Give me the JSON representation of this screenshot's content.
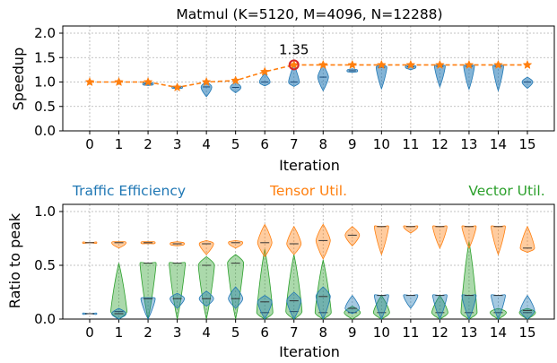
{
  "colors": {
    "blue": "#1f77b4",
    "orange": "#ff7f0e",
    "green": "#2ca02c",
    "marker": "#ff7f0e",
    "highlight": "#d62728"
  },
  "chart_data": [
    {
      "type": "line",
      "title": "Matmul (K=5120, M=4096, N=12288)",
      "xlabel": "Iteration",
      "ylabel": "Speedup",
      "x": [
        0,
        1,
        2,
        3,
        4,
        5,
        6,
        7,
        8,
        9,
        10,
        11,
        12,
        13,
        14,
        15
      ],
      "xticks": [
        "0",
        "1",
        "2",
        "3",
        "4",
        "5",
        "6",
        "7",
        "8",
        "9",
        "10",
        "11",
        "12",
        "13",
        "14",
        "15"
      ],
      "ylim": [
        0.0,
        2.0
      ],
      "yticks": [
        "0.0",
        "0.5",
        "1.0",
        "1.5",
        "2.0"
      ],
      "grid": true,
      "series": [
        {
          "values": [
            1.0,
            1.0,
            1.0,
            0.89,
            1.0,
            1.03,
            1.21,
            1.35,
            1.35,
            1.35,
            1.35,
            1.35,
            1.35,
            1.35,
            1.35,
            1.35
          ]
        }
      ],
      "violins": [
        {
          "x": 2,
          "min": 0.93,
          "max": 0.99,
          "median": 0.96
        },
        {
          "x": 3,
          "min": 0.87,
          "max": 0.91,
          "median": 0.89
        },
        {
          "x": 4,
          "min": 0.7,
          "max": 1.0,
          "median": 0.9
        },
        {
          "x": 5,
          "min": 0.78,
          "max": 1.0,
          "median": 0.89
        },
        {
          "x": 6,
          "min": 0.92,
          "max": 1.17,
          "median": 1.0
        },
        {
          "x": 7,
          "min": 0.91,
          "max": 1.35,
          "median": 1.0
        },
        {
          "x": 8,
          "min": 0.82,
          "max": 1.35,
          "median": 1.1
        },
        {
          "x": 9,
          "min": 1.2,
          "max": 1.27,
          "median": 1.23
        },
        {
          "x": 10,
          "min": 0.86,
          "max": 1.35,
          "median": 1.3
        },
        {
          "x": 11,
          "min": 1.25,
          "max": 1.35,
          "median": 1.31
        },
        {
          "x": 12,
          "min": 0.9,
          "max": 1.35,
          "median": 1.32
        },
        {
          "x": 13,
          "min": 0.85,
          "max": 1.35,
          "median": 1.32
        },
        {
          "x": 14,
          "min": 0.82,
          "max": 1.35,
          "median": 1.32
        },
        {
          "x": 15,
          "min": 0.87,
          "max": 1.1,
          "median": 1.0
        }
      ],
      "annotation": {
        "text": "1.35",
        "x": 7,
        "y": 1.35
      }
    },
    {
      "type": "violin",
      "xlabel": "Iteration",
      "ylabel": "Ratio to peak",
      "x": [
        0,
        1,
        2,
        3,
        4,
        5,
        6,
        7,
        8,
        9,
        10,
        11,
        12,
        13,
        14,
        15
      ],
      "xticks": [
        "0",
        "1",
        "2",
        "3",
        "4",
        "5",
        "6",
        "7",
        "8",
        "9",
        "10",
        "11",
        "12",
        "13",
        "14",
        "15"
      ],
      "ylim": [
        0.0,
        1.0
      ],
      "yticks": [
        "0.0",
        "0.5",
        "1.0"
      ],
      "grid": true,
      "legend": [
        "Traffic Efficiency",
        "Tensor Util.",
        "Vector Util."
      ],
      "series": [
        {
          "name": "Traffic Efficiency",
          "violins": [
            {
              "x": 0,
              "min": 0.05,
              "max": 0.05,
              "median": 0.05
            },
            {
              "x": 1,
              "min": 0.0,
              "max": 0.1,
              "median": 0.05
            },
            {
              "x": 2,
              "min": 0.0,
              "max": 0.2,
              "median": 0.19
            },
            {
              "x": 3,
              "min": 0.1,
              "max": 0.24,
              "median": 0.19
            },
            {
              "x": 4,
              "min": 0.12,
              "max": 0.26,
              "median": 0.19
            },
            {
              "x": 5,
              "min": 0.1,
              "max": 0.3,
              "median": 0.19
            },
            {
              "x": 6,
              "min": 0.0,
              "max": 0.22,
              "median": 0.16
            },
            {
              "x": 7,
              "min": 0.0,
              "max": 0.25,
              "median": 0.17
            },
            {
              "x": 8,
              "min": 0.0,
              "max": 0.3,
              "median": 0.21
            },
            {
              "x": 9,
              "min": 0.05,
              "max": 0.22,
              "median": 0.1
            },
            {
              "x": 10,
              "min": 0.0,
              "max": 0.22,
              "median": 0.22
            },
            {
              "x": 11,
              "min": 0.1,
              "max": 0.22,
              "median": 0.22
            },
            {
              "x": 12,
              "min": 0.0,
              "max": 0.22,
              "median": 0.22
            },
            {
              "x": 13,
              "min": 0.0,
              "max": 0.22,
              "median": 0.22
            },
            {
              "x": 14,
              "min": 0.0,
              "max": 0.22,
              "median": 0.22
            },
            {
              "x": 15,
              "min": 0.0,
              "max": 0.22,
              "median": 0.08
            }
          ]
        },
        {
          "name": "Tensor Util.",
          "violins": [
            {
              "x": 0,
              "min": 0.71,
              "max": 0.71,
              "median": 0.71
            },
            {
              "x": 1,
              "min": 0.66,
              "max": 0.72,
              "median": 0.71
            },
            {
              "x": 2,
              "min": 0.7,
              "max": 0.72,
              "median": 0.71
            },
            {
              "x": 3,
              "min": 0.68,
              "max": 0.72,
              "median": 0.7
            },
            {
              "x": 4,
              "min": 0.6,
              "max": 0.73,
              "median": 0.7
            },
            {
              "x": 5,
              "min": 0.66,
              "max": 0.73,
              "median": 0.71
            },
            {
              "x": 6,
              "min": 0.58,
              "max": 0.88,
              "median": 0.71
            },
            {
              "x": 7,
              "min": 0.6,
              "max": 0.86,
              "median": 0.7
            },
            {
              "x": 8,
              "min": 0.56,
              "max": 0.88,
              "median": 0.73
            },
            {
              "x": 9,
              "min": 0.68,
              "max": 0.86,
              "median": 0.78
            },
            {
              "x": 10,
              "min": 0.6,
              "max": 0.86,
              "median": 0.86
            },
            {
              "x": 11,
              "min": 0.8,
              "max": 0.86,
              "median": 0.86
            },
            {
              "x": 12,
              "min": 0.66,
              "max": 0.86,
              "median": 0.86
            },
            {
              "x": 13,
              "min": 0.66,
              "max": 0.86,
              "median": 0.86
            },
            {
              "x": 14,
              "min": 0.6,
              "max": 0.86,
              "median": 0.86
            },
            {
              "x": 15,
              "min": 0.62,
              "max": 0.86,
              "median": 0.66
            }
          ]
        },
        {
          "name": "Vector Util.",
          "violins": [
            {
              "x": 1,
              "min": 0.0,
              "max": 0.52,
              "median": 0.07
            },
            {
              "x": 2,
              "min": 0.0,
              "max": 0.52,
              "median": 0.52
            },
            {
              "x": 3,
              "min": 0.0,
              "max": 0.52,
              "median": 0.52
            },
            {
              "x": 4,
              "min": 0.0,
              "max": 0.58,
              "median": 0.5
            },
            {
              "x": 5,
              "min": 0.0,
              "max": 0.6,
              "median": 0.52
            },
            {
              "x": 6,
              "min": 0.0,
              "max": 0.65,
              "median": 0.06
            },
            {
              "x": 7,
              "min": 0.0,
              "max": 0.6,
              "median": 0.07
            },
            {
              "x": 8,
              "min": 0.0,
              "max": 0.55,
              "median": 0.06
            },
            {
              "x": 9,
              "min": 0.0,
              "max": 0.12,
              "median": 0.06
            },
            {
              "x": 10,
              "min": 0.0,
              "max": 0.22,
              "median": 0.06
            },
            {
              "x": 12,
              "min": 0.0,
              "max": 0.22,
              "median": 0.06
            },
            {
              "x": 13,
              "min": 0.0,
              "max": 0.72,
              "median": 0.06
            },
            {
              "x": 14,
              "min": 0.0,
              "max": 0.1,
              "median": 0.06
            },
            {
              "x": 15,
              "min": 0.0,
              "max": 0.1,
              "median": 0.06
            }
          ]
        }
      ]
    }
  ]
}
